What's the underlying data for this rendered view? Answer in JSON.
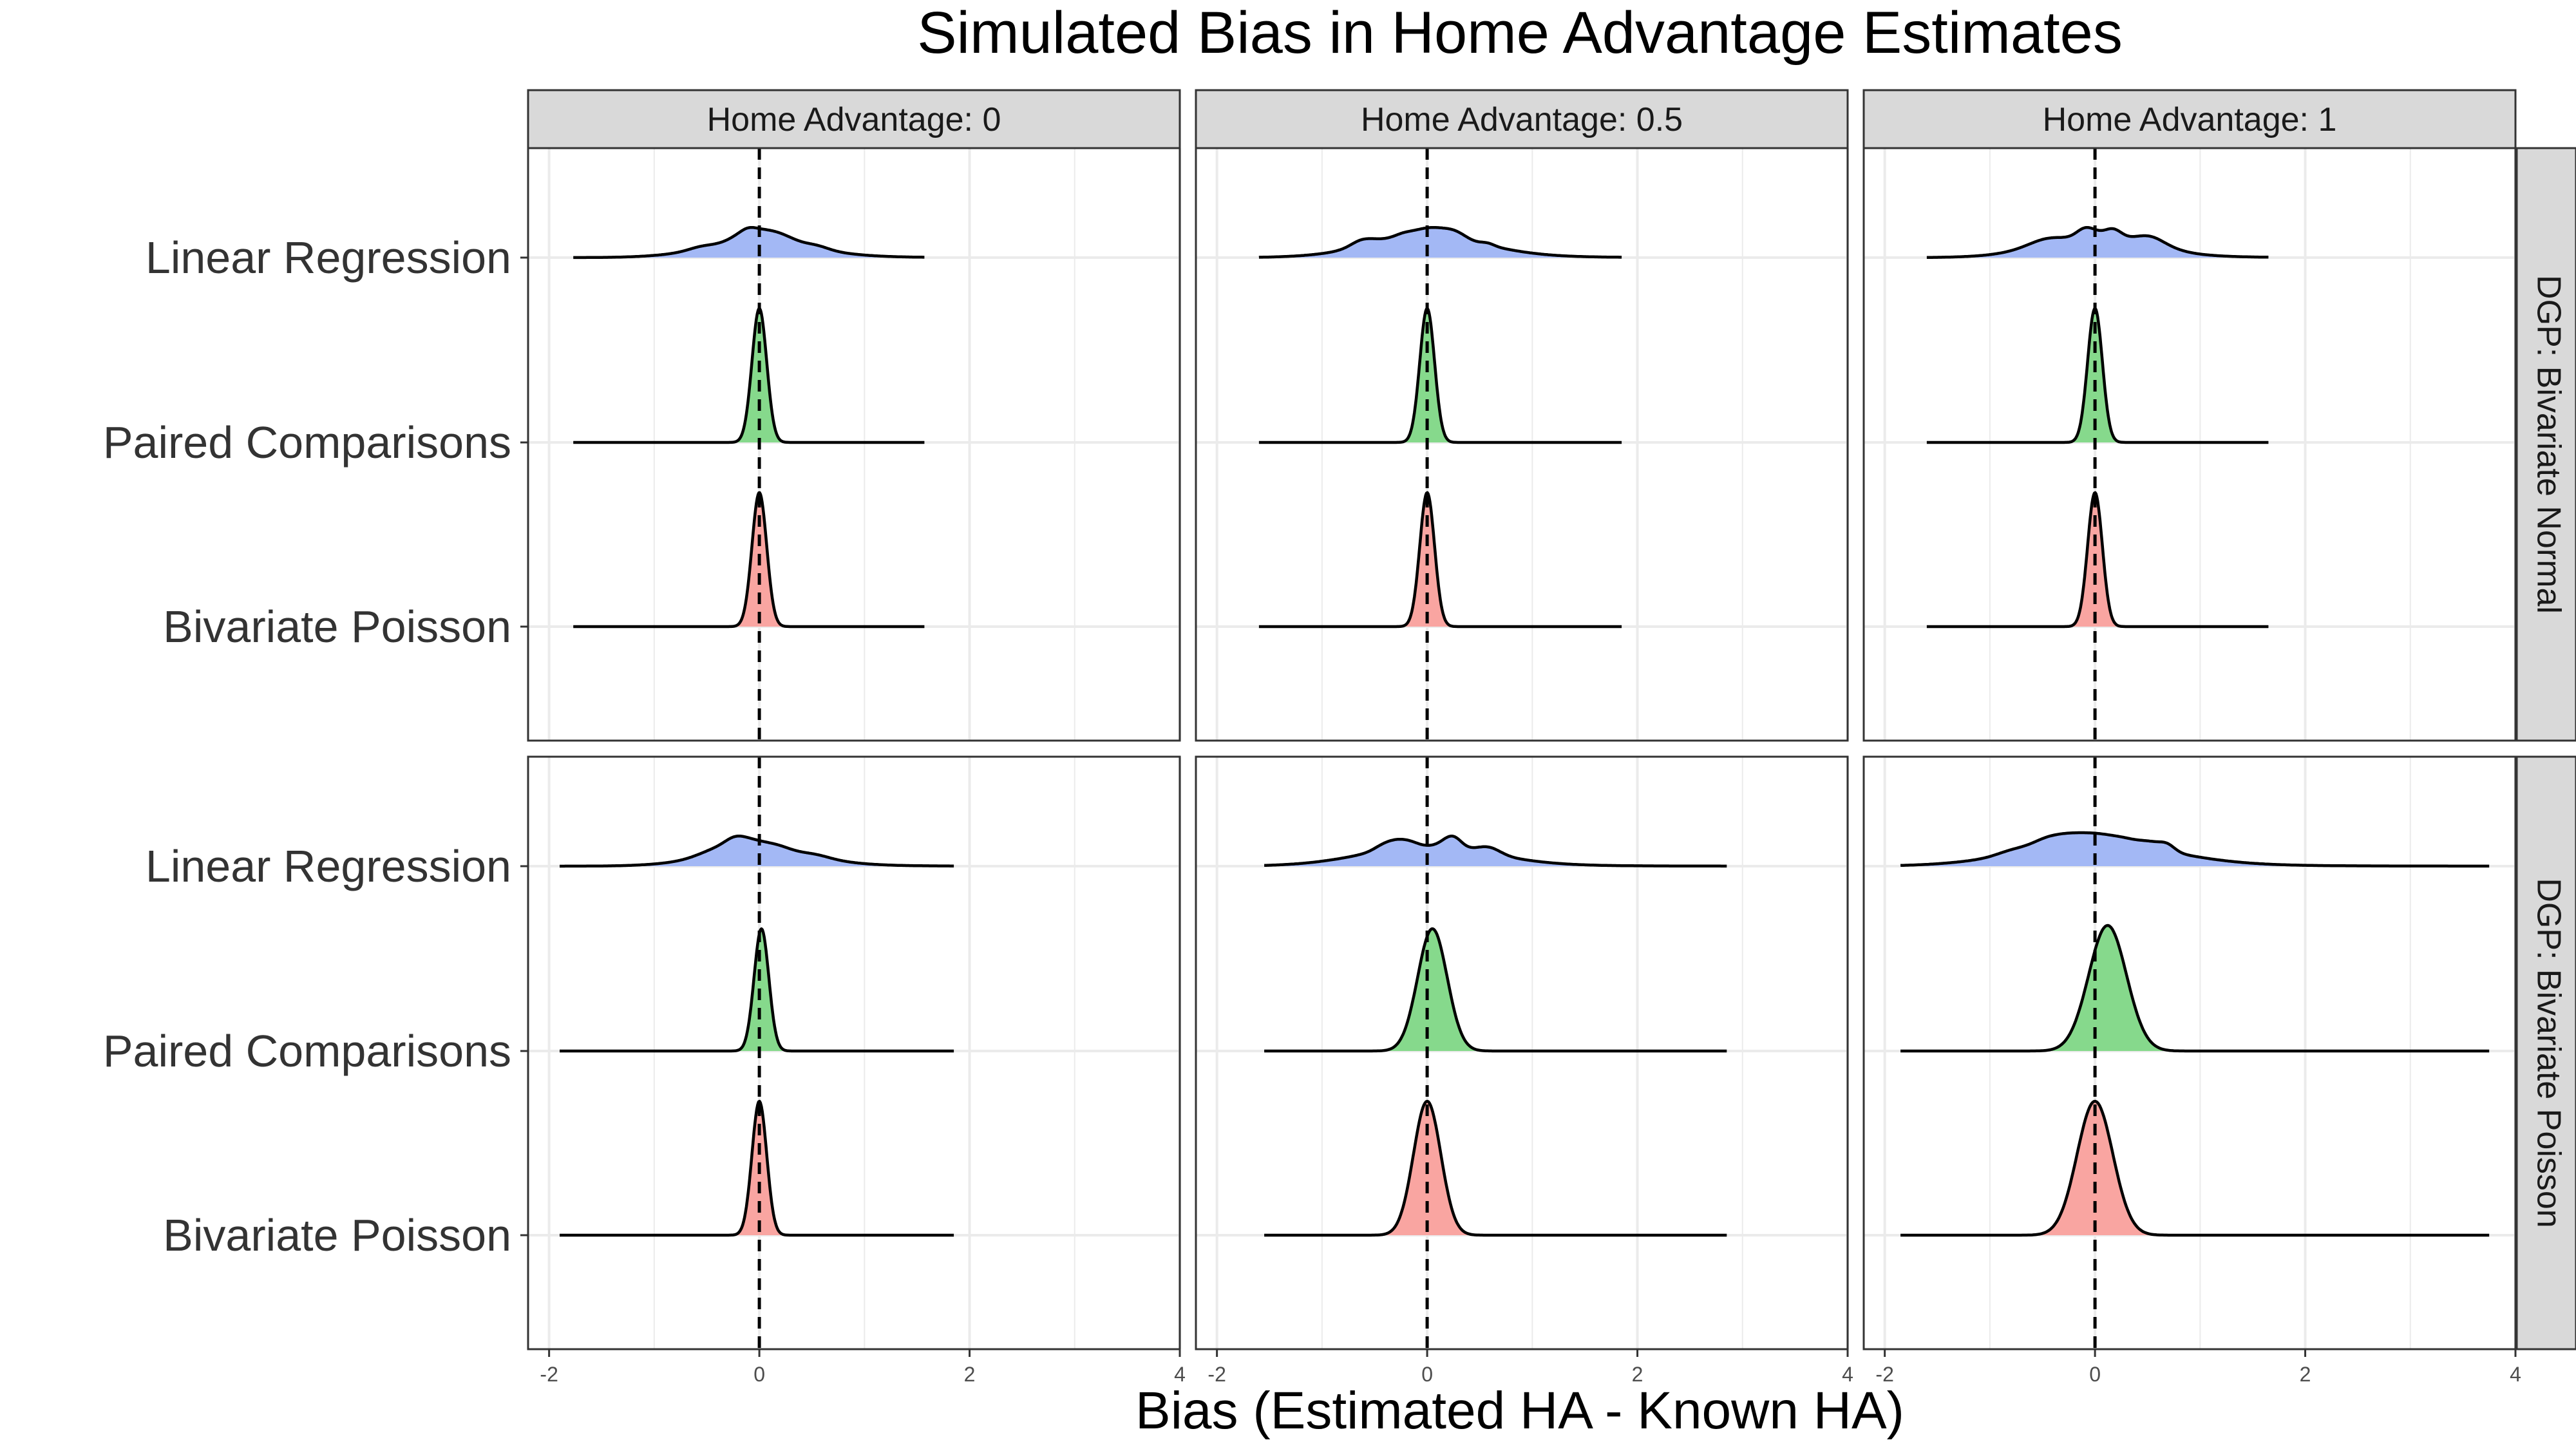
{
  "chart_data": {
    "type": "ridgeline",
    "title": "Simulated Bias in Home Advantage Estimates",
    "xlabel": "Bias (Estimated HA - Known HA)",
    "ylabel": "",
    "xlim": [
      -2.2,
      4
    ],
    "x_ticks": [
      -2,
      0,
      2,
      4
    ],
    "x_tick_labels": [
      "-2",
      "0",
      "2",
      "4"
    ],
    "reference_line": {
      "x": 0,
      "style": "dashed"
    },
    "grid": true,
    "legend": "none",
    "facet_columns": [
      "Home Advantage: 0",
      "Home Advantage: 0.5",
      "Home Advantage: 1"
    ],
    "facet_rows": [
      "DGP: Bivariate Normal",
      "DGP: Bivariate Poisson"
    ],
    "methods": [
      "Linear Regression",
      "Paired Comparisons",
      "Bivariate Poisson"
    ],
    "method_colors": {
      "Linear Regression": "#a3b8f5",
      "Paired Comparisons": "#86d98c",
      "Bivariate Poisson": "#f9a5a1"
    },
    "panels": [
      {
        "row": "DGP: Bivariate Normal",
        "col": "Home Advantage: 0",
        "series": [
          {
            "method": "Linear Regression",
            "mean": 0.0,
            "sd": 0.5,
            "min": -1.77,
            "max": 1.57,
            "relative_peak": 0.18
          },
          {
            "method": "Paired Comparisons",
            "mean": 0.0,
            "sd": 0.07,
            "min": -1.77,
            "max": 1.57,
            "relative_peak": 0.8
          },
          {
            "method": "Bivariate Poisson",
            "mean": 0.0,
            "sd": 0.07,
            "min": -1.77,
            "max": 1.57,
            "relative_peak": 0.8
          }
        ]
      },
      {
        "row": "DGP: Bivariate Normal",
        "col": "Home Advantage: 0.5",
        "series": [
          {
            "method": "Linear Regression",
            "mean": 0.0,
            "sd": 0.55,
            "min": -1.6,
            "max": 1.85,
            "relative_peak": 0.18
          },
          {
            "method": "Paired Comparisons",
            "mean": 0.0,
            "sd": 0.07,
            "min": -1.6,
            "max": 1.85,
            "relative_peak": 0.8
          },
          {
            "method": "Bivariate Poisson",
            "mean": 0.0,
            "sd": 0.07,
            "min": -1.6,
            "max": 1.85,
            "relative_peak": 0.8
          }
        ]
      },
      {
        "row": "DGP: Bivariate Normal",
        "col": "Home Advantage: 1",
        "series": [
          {
            "method": "Linear Regression",
            "mean": 0.0,
            "sd": 0.5,
            "min": -1.6,
            "max": 1.65,
            "relative_peak": 0.18
          },
          {
            "method": "Paired Comparisons",
            "mean": 0.0,
            "sd": 0.07,
            "min": -1.6,
            "max": 1.65,
            "relative_peak": 0.8
          },
          {
            "method": "Bivariate Poisson",
            "mean": 0.0,
            "sd": 0.07,
            "min": -1.6,
            "max": 1.65,
            "relative_peak": 0.8
          }
        ]
      },
      {
        "row": "DGP: Bivariate Poisson",
        "col": "Home Advantage: 0",
        "series": [
          {
            "method": "Linear Regression",
            "mean": 0.0,
            "sd": 0.5,
            "min": -1.9,
            "max": 1.85,
            "relative_peak": 0.18
          },
          {
            "method": "Paired Comparisons",
            "mean": 0.02,
            "sd": 0.07,
            "min": -1.9,
            "max": 1.85,
            "relative_peak": 0.73
          },
          {
            "method": "Bivariate Poisson",
            "mean": 0.0,
            "sd": 0.07,
            "min": -1.9,
            "max": 1.85,
            "relative_peak": 0.8
          }
        ]
      },
      {
        "row": "DGP: Bivariate Poisson",
        "col": "Home Advantage: 0.5",
        "series": [
          {
            "method": "Linear Regression",
            "mean": 0.0,
            "sd": 0.6,
            "min": -1.55,
            "max": 2.85,
            "relative_peak": 0.18
          },
          {
            "method": "Paired Comparisons",
            "mean": 0.05,
            "sd": 0.14,
            "min": -1.55,
            "max": 2.85,
            "relative_peak": 0.73
          },
          {
            "method": "Bivariate Poisson",
            "mean": 0.0,
            "sd": 0.13,
            "min": -1.55,
            "max": 2.85,
            "relative_peak": 0.8
          }
        ]
      },
      {
        "row": "DGP: Bivariate Poisson",
        "col": "Home Advantage: 1",
        "series": [
          {
            "method": "Linear Regression",
            "mean": 0.0,
            "sd": 0.7,
            "min": -1.85,
            "max": 3.75,
            "relative_peak": 0.2
          },
          {
            "method": "Paired Comparisons",
            "mean": 0.12,
            "sd": 0.18,
            "min": -1.85,
            "max": 3.75,
            "relative_peak": 0.75
          },
          {
            "method": "Bivariate Poisson",
            "mean": 0.0,
            "sd": 0.17,
            "min": -1.85,
            "max": 3.75,
            "relative_peak": 0.8
          }
        ]
      }
    ]
  }
}
